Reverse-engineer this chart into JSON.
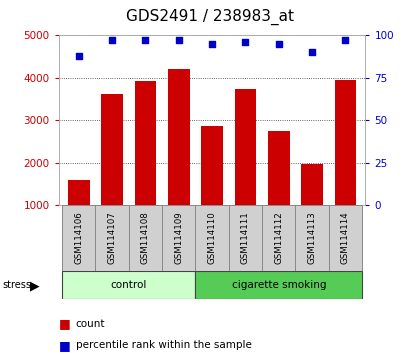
{
  "title": "GDS2491 / 238983_at",
  "samples": [
    "GSM114106",
    "GSM114107",
    "GSM114108",
    "GSM114109",
    "GSM114110",
    "GSM114111",
    "GSM114112",
    "GSM114113",
    "GSM114114"
  ],
  "counts": [
    1600,
    3620,
    3930,
    4220,
    2870,
    3730,
    2760,
    1970,
    3940
  ],
  "percentile_ranks": [
    88,
    97,
    97,
    97,
    95,
    96,
    95,
    90,
    97
  ],
  "ylim_left": [
    1000,
    5000
  ],
  "ylim_right": [
    0,
    100
  ],
  "yticks_left": [
    1000,
    2000,
    3000,
    4000,
    5000
  ],
  "yticks_right": [
    0,
    25,
    50,
    75,
    100
  ],
  "groups": [
    {
      "label": "control",
      "start": 0,
      "end": 4,
      "color": "#ccffcc"
    },
    {
      "label": "cigarette smoking",
      "start": 4,
      "end": 9,
      "color": "#55cc55"
    }
  ],
  "bar_color": "#cc0000",
  "dot_color": "#0000cc",
  "stress_label": "stress",
  "legend_count": "count",
  "legend_percentile": "percentile rank within the sample",
  "title_fontsize": 11,
  "axis_label_color_left": "#cc0000",
  "axis_label_color_right": "#0000cc",
  "background_color": "#ffffff",
  "plot_bg_color": "#ffffff",
  "grid_color": "#000000",
  "bar_bottom": 1000
}
